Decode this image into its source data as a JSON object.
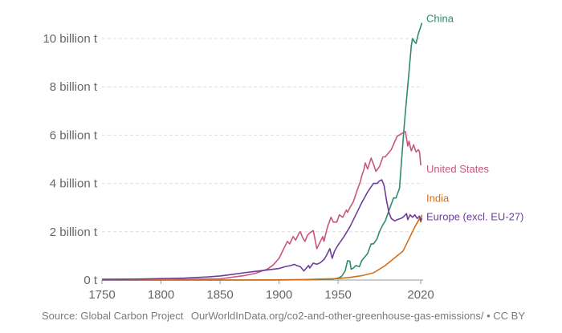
{
  "chart_data": {
    "type": "line",
    "title": "",
    "xlabel": "",
    "ylabel": "",
    "xlim": [
      1750,
      2022
    ],
    "ylim": [
      0,
      10600000000
    ],
    "y_ticks": [
      {
        "value": 0,
        "label": "0 t"
      },
      {
        "value": 2000000000,
        "label": "2 billion t"
      },
      {
        "value": 4000000000,
        "label": "4 billion t"
      },
      {
        "value": 6000000000,
        "label": "6 billion t"
      },
      {
        "value": 8000000000,
        "label": "8 billion t"
      },
      {
        "value": 10000000000,
        "label": "10 billion t"
      }
    ],
    "x_ticks": [
      {
        "value": 1750,
        "label": "1750"
      },
      {
        "value": 1800,
        "label": "1800"
      },
      {
        "value": 1850,
        "label": "1850"
      },
      {
        "value": 1900,
        "label": "1900"
      },
      {
        "value": 1950,
        "label": "1950"
      },
      {
        "value": 2020,
        "label": "2020"
      }
    ],
    "grid": "horizontal dashed",
    "series": [
      {
        "name": "China",
        "color": "#2e8b6d",
        "points": [
          [
            1750,
            0
          ],
          [
            1850,
            0
          ],
          [
            1900,
            0
          ],
          [
            1930,
            20000000
          ],
          [
            1945,
            40000000
          ],
          [
            1950,
            80000000
          ],
          [
            1953,
            150000000
          ],
          [
            1956,
            380000000
          ],
          [
            1958,
            800000000
          ],
          [
            1960,
            780000000
          ],
          [
            1961,
            450000000
          ],
          [
            1963,
            500000000
          ],
          [
            1965,
            600000000
          ],
          [
            1968,
            550000000
          ],
          [
            1970,
            800000000
          ],
          [
            1975,
            1100000000
          ],
          [
            1978,
            1500000000
          ],
          [
            1980,
            1500000000
          ],
          [
            1983,
            1700000000
          ],
          [
            1985,
            2000000000
          ],
          [
            1988,
            2300000000
          ],
          [
            1990,
            2450000000
          ],
          [
            1994,
            3000000000
          ],
          [
            1997,
            3400000000
          ],
          [
            1999,
            3400000000
          ],
          [
            2002,
            3800000000
          ],
          [
            2004,
            5100000000
          ],
          [
            2006,
            6400000000
          ],
          [
            2008,
            7500000000
          ],
          [
            2010,
            8600000000
          ],
          [
            2012,
            9700000000
          ],
          [
            2013,
            10000000000
          ],
          [
            2015,
            9850000000
          ],
          [
            2016,
            9800000000
          ],
          [
            2018,
            10200000000
          ],
          [
            2019,
            10350000000
          ],
          [
            2020,
            10500000000
          ],
          [
            2021,
            10650000000
          ]
        ]
      },
      {
        "name": "United States",
        "color": "#c8577a",
        "points": [
          [
            1750,
            0
          ],
          [
            1800,
            5000000
          ],
          [
            1850,
            50000000
          ],
          [
            1870,
            180000000
          ],
          [
            1880,
            280000000
          ],
          [
            1890,
            450000000
          ],
          [
            1895,
            620000000
          ],
          [
            1900,
            900000000
          ],
          [
            1903,
            1200000000
          ],
          [
            1907,
            1600000000
          ],
          [
            1909,
            1500000000
          ],
          [
            1912,
            1800000000
          ],
          [
            1914,
            1650000000
          ],
          [
            1917,
            1950000000
          ],
          [
            1918,
            2000000000
          ],
          [
            1920,
            1750000000
          ],
          [
            1922,
            1600000000
          ],
          [
            1924,
            1850000000
          ],
          [
            1926,
            1950000000
          ],
          [
            1929,
            2050000000
          ],
          [
            1930,
            1800000000
          ],
          [
            1932,
            1300000000
          ],
          [
            1935,
            1600000000
          ],
          [
            1937,
            1800000000
          ],
          [
            1938,
            1600000000
          ],
          [
            1941,
            2200000000
          ],
          [
            1944,
            2600000000
          ],
          [
            1946,
            2400000000
          ],
          [
            1949,
            2400000000
          ],
          [
            1951,
            2700000000
          ],
          [
            1954,
            2600000000
          ],
          [
            1957,
            2900000000
          ],
          [
            1958,
            2800000000
          ],
          [
            1960,
            3000000000
          ],
          [
            1963,
            3250000000
          ],
          [
            1966,
            3700000000
          ],
          [
            1969,
            4100000000
          ],
          [
            1970,
            4300000000
          ],
          [
            1972,
            4600000000
          ],
          [
            1973,
            4850000000
          ],
          [
            1975,
            4600000000
          ],
          [
            1978,
            5050000000
          ],
          [
            1980,
            4800000000
          ],
          [
            1982,
            4500000000
          ],
          [
            1985,
            4700000000
          ],
          [
            1988,
            5100000000
          ],
          [
            1990,
            5100000000
          ],
          [
            1995,
            5400000000
          ],
          [
            2000,
            5950000000
          ],
          [
            2005,
            6100000000
          ],
          [
            2007,
            6150000000
          ],
          [
            2009,
            5550000000
          ],
          [
            2010,
            5750000000
          ],
          [
            2012,
            5350000000
          ],
          [
            2014,
            5600000000
          ],
          [
            2016,
            5300000000
          ],
          [
            2018,
            5400000000
          ],
          [
            2019,
            5300000000
          ],
          [
            2020,
            4750000000
          ]
        ]
      },
      {
        "name": "India",
        "color": "#d1701c",
        "points": [
          [
            1750,
            0
          ],
          [
            1850,
            0
          ],
          [
            1900,
            10000000
          ],
          [
            1920,
            20000000
          ],
          [
            1950,
            60000000
          ],
          [
            1960,
            110000000
          ],
          [
            1970,
            180000000
          ],
          [
            1980,
            300000000
          ],
          [
            1990,
            600000000
          ],
          [
            2000,
            1000000000
          ],
          [
            2005,
            1200000000
          ],
          [
            2010,
            1700000000
          ],
          [
            2015,
            2200000000
          ],
          [
            2019,
            2550000000
          ],
          [
            2020,
            2400000000
          ],
          [
            2021,
            2700000000
          ]
        ]
      },
      {
        "name": "Europe (excl. EU-27)",
        "color": "#6b3f99",
        "points": [
          [
            1750,
            30000000
          ],
          [
            1780,
            40000000
          ],
          [
            1800,
            60000000
          ],
          [
            1820,
            80000000
          ],
          [
            1840,
            130000000
          ],
          [
            1850,
            170000000
          ],
          [
            1860,
            230000000
          ],
          [
            1870,
            300000000
          ],
          [
            1880,
            360000000
          ],
          [
            1890,
            420000000
          ],
          [
            1900,
            480000000
          ],
          [
            1905,
            550000000
          ],
          [
            1910,
            600000000
          ],
          [
            1913,
            650000000
          ],
          [
            1915,
            600000000
          ],
          [
            1918,
            550000000
          ],
          [
            1921,
            380000000
          ],
          [
            1925,
            600000000
          ],
          [
            1926,
            500000000
          ],
          [
            1929,
            700000000
          ],
          [
            1932,
            650000000
          ],
          [
            1935,
            720000000
          ],
          [
            1938,
            850000000
          ],
          [
            1940,
            1000000000
          ],
          [
            1943,
            1300000000
          ],
          [
            1945,
            900000000
          ],
          [
            1947,
            1200000000
          ],
          [
            1950,
            1450000000
          ],
          [
            1955,
            1800000000
          ],
          [
            1960,
            2200000000
          ],
          [
            1965,
            2700000000
          ],
          [
            1970,
            3200000000
          ],
          [
            1975,
            3650000000
          ],
          [
            1980,
            4000000000
          ],
          [
            1983,
            4000000000
          ],
          [
            1985,
            4100000000
          ],
          [
            1987,
            4150000000
          ],
          [
            1989,
            3900000000
          ],
          [
            1991,
            3300000000
          ],
          [
            1993,
            2800000000
          ],
          [
            1995,
            2550000000
          ],
          [
            1998,
            2450000000
          ],
          [
            2000,
            2500000000
          ],
          [
            2003,
            2550000000
          ],
          [
            2005,
            2600000000
          ],
          [
            2008,
            2750000000
          ],
          [
            2009,
            2500000000
          ],
          [
            2011,
            2700000000
          ],
          [
            2013,
            2600000000
          ],
          [
            2015,
            2700000000
          ],
          [
            2017,
            2550000000
          ],
          [
            2019,
            2650000000
          ],
          [
            2020,
            2450000000
          ],
          [
            2021,
            2550000000
          ]
        ]
      }
    ]
  },
  "footer": {
    "source": "Source: Global Carbon Project",
    "credit": "OurWorldInData.org/co2-and-other-greenhouse-gas-emissions/ • CC BY"
  }
}
